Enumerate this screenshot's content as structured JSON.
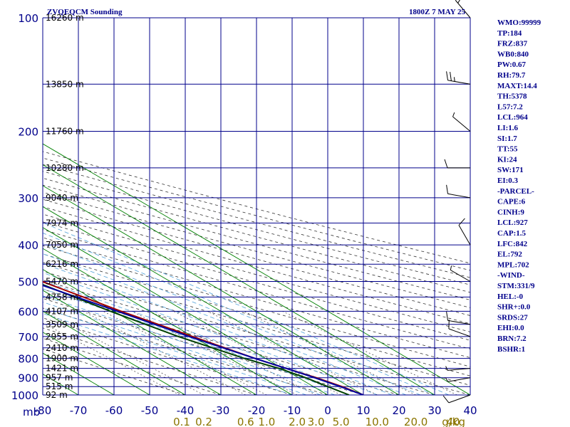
{
  "chart_data": {
    "type": "line",
    "title": "ZVQEQCM Sounding",
    "valid_time": "1800Z  7 MAY 25",
    "pressure_axis_unit": "mb",
    "mixing_ratio_unit": "g/kg",
    "xlim": [
      -80,
      40
    ],
    "ylim": [
      1000,
      100
    ],
    "grid": true,
    "pressure_ticks": [
      100,
      200,
      300,
      400,
      500,
      600,
      700,
      800,
      900,
      1000
    ],
    "pressure_tick_labels": [
      "100",
      "200",
      "300",
      "400",
      "500",
      "600",
      "700",
      "800",
      "900",
      "1000"
    ],
    "temperature_ticks": [
      -80,
      -70,
      -60,
      -50,
      -40,
      -30,
      -20,
      -10,
      0,
      10,
      20,
      30,
      40
    ],
    "temperature_tick_labels": [
      "-80",
      "-70",
      "-60",
      "-50",
      "-40",
      "-30",
      "-20",
      "-10",
      "0",
      "10",
      "20",
      "30",
      "40"
    ],
    "mixing_ratio_labels": [
      {
        "value": 0.1,
        "text": "0.1"
      },
      {
        "value": 0.2,
        "text": "0.2"
      },
      {
        "value": 0.6,
        "text": "0.6"
      },
      {
        "value": 1.0,
        "text": "1.0"
      },
      {
        "value": 2.0,
        "text": "2.0"
      },
      {
        "value": 3.0,
        "text": "3.0"
      },
      {
        "value": 5.0,
        "text": "5.0"
      },
      {
        "value": 10.0,
        "text": "10.0"
      },
      {
        "value": 20.0,
        "text": "20.0"
      },
      {
        "value": 40.0,
        "text": "40"
      }
    ],
    "heights": [
      {
        "p": 100,
        "label": "16260 m"
      },
      {
        "p": 150,
        "label": "13850 m"
      },
      {
        "p": 200,
        "label": "11760 m"
      },
      {
        "p": 250,
        "label": "10280 m"
      },
      {
        "p": 300,
        "label": "9040 m"
      },
      {
        "p": 350,
        "label": "7974 m"
      },
      {
        "p": 400,
        "label": "7050 m"
      },
      {
        "p": 450,
        "label": "6216 m"
      },
      {
        "p": 500,
        "label": "5470 m"
      },
      {
        "p": 550,
        "label": "4758 m"
      },
      {
        "p": 600,
        "label": "4107 m"
      },
      {
        "p": 650,
        "label": "3509 m"
      },
      {
        "p": 700,
        "label": "2955 m"
      },
      {
        "p": 750,
        "label": "2410 m"
      },
      {
        "p": 800,
        "label": "1900 m"
      },
      {
        "p": 850,
        "label": "1421 m"
      },
      {
        "p": 900,
        "label": "957 m"
      },
      {
        "p": 950,
        "label": "515 m"
      },
      {
        "p": 1000,
        "label": "92 m"
      }
    ],
    "series": [
      {
        "role": "temperature",
        "color": "#a00000",
        "points": [
          {
            "p": 1000,
            "t": 10
          },
          {
            "p": 950,
            "t": 8
          },
          {
            "p": 900,
            "t": 5
          },
          {
            "p": 850,
            "t": 1
          },
          {
            "p": 800,
            "t": -3
          },
          {
            "p": 700,
            "t": -10
          },
          {
            "p": 600,
            "t": -18
          },
          {
            "p": 500,
            "t": -26
          },
          {
            "p": 400,
            "t": -33
          },
          {
            "p": 300,
            "t": -42
          },
          {
            "p": 250,
            "t": -47
          },
          {
            "p": 200,
            "t": -53
          },
          {
            "p": 170,
            "t": -59
          },
          {
            "p": 150,
            "t": -60
          },
          {
            "p": 100,
            "t": -74
          }
        ]
      },
      {
        "role": "dewpoint",
        "color": "#004000",
        "points": [
          {
            "p": 1000,
            "t": 6
          },
          {
            "p": 950,
            "t": 4
          },
          {
            "p": 900,
            "t": 2
          },
          {
            "p": 850,
            "t": -1
          },
          {
            "p": 800,
            "t": -6
          },
          {
            "p": 700,
            "t": -14
          },
          {
            "p": 600,
            "t": -21
          },
          {
            "p": 500,
            "t": -28
          },
          {
            "p": 450,
            "t": -48
          },
          {
            "p": 400,
            "t": -70
          },
          {
            "p": 225,
            "t": -84
          }
        ]
      },
      {
        "role": "parcel",
        "color": "#0000a0",
        "points": [
          {
            "p": 1000,
            "t": 10
          },
          {
            "p": 950,
            "t": 7.5
          },
          {
            "p": 900,
            "t": 4.5
          },
          {
            "p": 850,
            "t": 1
          },
          {
            "p": 800,
            "t": -3
          },
          {
            "p": 700,
            "t": -11
          },
          {
            "p": 600,
            "t": -19
          },
          {
            "p": 500,
            "t": -29
          },
          {
            "p": 400,
            "t": -44
          },
          {
            "p": 300,
            "t": -63
          },
          {
            "p": 200,
            "t": -87
          }
        ]
      }
    ],
    "wind_barbs": [
      {
        "p": 1000,
        "dir": 250,
        "spd": 10
      },
      {
        "p": 900,
        "dir": 260,
        "spd": 5
      },
      {
        "p": 850,
        "dir": 265,
        "spd": 5
      },
      {
        "p": 700,
        "dir": 290,
        "spd": 10
      },
      {
        "p": 650,
        "dir": 280,
        "spd": 10
      },
      {
        "p": 500,
        "dir": 300,
        "spd": 5
      },
      {
        "p": 400,
        "dir": 330,
        "spd": 10
      },
      {
        "p": 300,
        "dir": 280,
        "spd": 10
      },
      {
        "p": 250,
        "dir": 270,
        "spd": 10
      },
      {
        "p": 200,
        "dir": 310,
        "spd": 5
      },
      {
        "p": 150,
        "dir": 280,
        "spd": 25
      },
      {
        "p": 100,
        "dir": 320,
        "spd": 15
      }
    ]
  },
  "stats": [
    "WMO:99999",
    "TP:184",
    "FRZ:837",
    "WB0:840",
    "PW:0.67",
    "RH:79.7",
    "MAXT:14.4",
    "TH:5378",
    "L57:7.2",
    "LCL:964",
    "LI:1.6",
    "SI:1.7",
    "TT:55",
    "KI:24",
    "SW:171",
    "EI:0.3",
    "-PARCEL-",
    "CAPE:6",
    "CINH:9",
    "LCL:927",
    "CAP:1.5",
    "LFC:842",
    "EL:792",
    "MPL:702",
    "-WIND-",
    "STM:331/9",
    "HEL:-0",
    "SHR+:0.0",
    "SRDS:27",
    "EHI:0.0",
    "BRN:7.2",
    "BSHR:1"
  ],
  "colors": {
    "grid": "#00008b",
    "isotherm": "#008000",
    "dry_adiabat": "#333333",
    "moist_adiabat": "#4fa0d8",
    "mixing_ratio_label": "#8b7500",
    "label": "#00008b"
  }
}
